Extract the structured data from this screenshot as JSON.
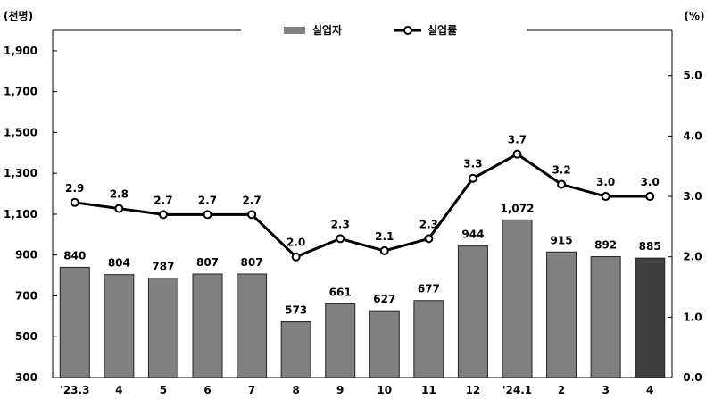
{
  "chart_data": {
    "type": "bar",
    "categories": [
      "'23.3",
      "4",
      "5",
      "6",
      "7",
      "8",
      "9",
      "10",
      "11",
      "12",
      "'24.1",
      "2",
      "3",
      "4"
    ],
    "series": [
      {
        "name": "실업자",
        "type": "bar",
        "axis": "left",
        "values": [
          840,
          804,
          787,
          807,
          807,
          573,
          661,
          627,
          677,
          944,
          1072,
          915,
          892,
          885
        ],
        "color": "#808080",
        "highlight_color": "#3f3f3f",
        "highlight_index": 13
      },
      {
        "name": "실업률",
        "type": "line",
        "axis": "right",
        "values": [
          2.9,
          2.8,
          2.7,
          2.7,
          2.7,
          2.0,
          2.3,
          2.1,
          2.3,
          3.3,
          3.7,
          3.2,
          3.0,
          3.0
        ],
        "color": "#000000"
      }
    ],
    "left_axis": {
      "unit_label": "(천명)",
      "ylim": [
        300,
        2000
      ],
      "ticks": [
        300,
        500,
        700,
        900,
        1100,
        1300,
        1500,
        1700,
        1900
      ],
      "tick_labels": [
        "300",
        "500",
        "700",
        "900",
        "1,100",
        "1,300",
        "1,500",
        "1,700",
        "1,900"
      ]
    },
    "right_axis": {
      "unit_label": "(%)",
      "ylim": [
        0,
        5.75
      ],
      "ticks": [
        0,
        1,
        2,
        3,
        4,
        5
      ],
      "tick_labels": [
        "0.0",
        "1.0",
        "2.0",
        "3.0",
        "4.0",
        "5.0"
      ]
    },
    "bar_value_labels": [
      "840",
      "804",
      "787",
      "807",
      "807",
      "573",
      "661",
      "627",
      "677",
      "944",
      "1,072",
      "915",
      "892",
      "885"
    ],
    "line_value_labels": [
      "2.9",
      "2.8",
      "2.7",
      "2.7",
      "2.7",
      "2.0",
      "2.3",
      "2.1",
      "2.3",
      "3.3",
      "3.7",
      "3.2",
      "3.0",
      "3.0"
    ],
    "legend": {
      "placement": "top-center",
      "items": [
        "실업자",
        "실업률"
      ]
    },
    "grid": false
  }
}
